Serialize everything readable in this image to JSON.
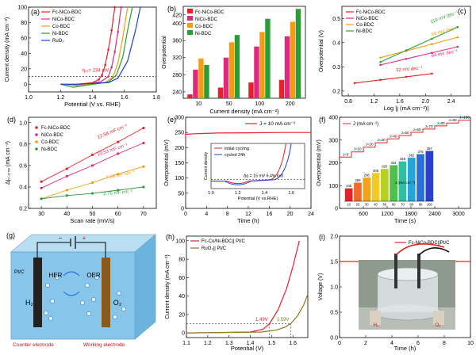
{
  "panels": {
    "a": {
      "label": "(a)",
      "xlabel": "Potential (V vs. RHE)",
      "ylabel": "Current density (mA cm⁻²)",
      "xticks": [
        "1.0",
        "1.2",
        "1.4",
        "1.6",
        "1.8"
      ],
      "yticks": [
        "0",
        "20",
        "40",
        "60",
        "80",
        "100"
      ],
      "annotation": "η₁₀= 234 mV",
      "legend": [
        "Fc-NiCo-BDC",
        "NiCo-BDC",
        "Co-BDC",
        "Ni-BDC",
        "RuO₂"
      ],
      "colors": [
        "#e8202a",
        "#e0287f",
        "#f39c12",
        "#2a9d35",
        "#1f3fd8"
      ]
    },
    "b": {
      "label": "(b)",
      "xlabel": "Current density (mA cm⁻²)",
      "ylabel": "Overpotential",
      "yticks": [
        "240",
        "280",
        "320",
        "360",
        "400",
        "420"
      ],
      "legend": [
        "Fc-NiCo-BDC",
        "NiCo-BDC",
        "Co-BDC",
        "Ni-BDC"
      ],
      "colors": [
        "#e8202a",
        "#e0287f",
        "#f39c12",
        "#2a9d35"
      ]
    },
    "c": {
      "label": "(c)",
      "xlabel": "Log |j (mA cm⁻²)|",
      "ylabel": "Overpotential (V)",
      "xticks": [
        "0.8",
        "1.2",
        "1.6",
        "2.0",
        "2.4"
      ],
      "yticks": [
        "0.2",
        "0.3",
        "0.4",
        "0.5"
      ],
      "legend": [
        "Fc-NiCo-BDC",
        "NiCo-BDC",
        "Co-BDC",
        "Ni-BDC"
      ],
      "tafel": [
        "119 mV dec⁻¹",
        "69 mV dec⁻¹",
        "64 mV dec⁻¹",
        "32 mV dec⁻¹"
      ],
      "colors": [
        "#e8202a",
        "#e0287f",
        "#f39c12",
        "#2a9d35"
      ]
    },
    "d": {
      "label": "(d)",
      "xlabel": "Scan rate (mV/s)",
      "ylabel": "Δj₀.₁₁₅ᵥ (mA cm⁻²)",
      "xticks": [
        "30",
        "40",
        "50",
        "60",
        "70"
      ],
      "yticks": [
        "0.2",
        "0.4",
        "0.6",
        "0.8",
        "1.0"
      ],
      "legend": [
        "Fc-NiCo-BDC",
        "NiCo-BDC",
        "Co-BDC",
        "Ni-BDC"
      ],
      "cdl": [
        "12.58 mF cm⁻²",
        "10.53 mF cm⁻²",
        "7.53 mF cm⁻²",
        "2.75 mF cm⁻²"
      ],
      "colors": [
        "#e8202a",
        "#e0287f",
        "#f39c12",
        "#2a9d35"
      ]
    },
    "e": {
      "label": "(e)",
      "xlabel": "Time (h)",
      "ylabel": "Overpotential (mV)",
      "xticks": [
        "0",
        "4",
        "8",
        "12",
        "16",
        "20",
        "24"
      ],
      "yticks": [
        "0",
        "50",
        "100",
        "150",
        "200",
        "250",
        "300"
      ],
      "legend": "J = 10 mA cm⁻²",
      "inset_legend": [
        "initial cycling",
        "cycled 24h"
      ],
      "inset_note": "Δη = 15 mV 6.4% lost",
      "inset_xlabel": "Potential (V vs.RHE)",
      "inset_ylabel": "Current density",
      "inset_xticks": [
        "1.0",
        "1.2",
        "1.4",
        "1.6"
      ]
    },
    "f": {
      "label": "(f)",
      "xlabel": "Time (s)",
      "ylabel": "Overpotential (mV)",
      "xticks": [
        "600",
        "1200",
        "1800",
        "2400",
        "3000"
      ],
      "yticks": [
        "0",
        "100",
        "200",
        "300",
        "400"
      ],
      "legend": "J (mA cm⁻²)",
      "steps": [
        "J=5",
        "J=10",
        "J=20",
        "J=30",
        "J=40",
        "J=50",
        "J=60",
        "J=70",
        "J=80",
        "J=90",
        "J=100"
      ],
      "bar_values": [
        "248",
        "269",
        "288",
        "305",
        "320",
        "334",
        "348",
        "362",
        "375",
        "387"
      ],
      "bar_labels": [
        "10",
        "20",
        "30",
        "40",
        "50",
        "60",
        "70",
        "80",
        "90",
        "100"
      ],
      "bar_xlabel": "J (mA cm⁻²)"
    },
    "g": {
      "label": "(g)",
      "pt": "Pt/C",
      "her": "HER",
      "oer": "OER",
      "h2": "H₂",
      "o2": "O₂",
      "counter": "Counter electrode",
      "working": "Working electrode",
      "minus": "−",
      "plus": "+"
    },
    "h": {
      "label": "(h)",
      "xlabel": "Potential (V)",
      "ylabel": "Current density (mA cm⁻²)",
      "xticks": [
        "1.1",
        "1.2",
        "1.3",
        "1.4",
        "1.5",
        "1.6"
      ],
      "yticks": [
        "0",
        "20",
        "40",
        "60",
        "80",
        "100"
      ],
      "legend": [
        "Fc-Co/Ni-BDC|| Pt/C",
        "RuO₂|| Pt/C"
      ],
      "v1": "1.49V",
      "v2": "1.59V"
    },
    "i": {
      "label": "(i)",
      "xlabel": "Time (h)",
      "ylabel": "Voltage (V)",
      "xticks": [
        "0",
        "2",
        "4",
        "6",
        "8",
        "10"
      ],
      "yticks": [
        "0.0",
        "0.5",
        "1.0",
        "1.5",
        "2.0"
      ],
      "legend": "Fc-NiCo-BDC||Pt/C",
      "h2": "H₂",
      "o2": "O₂"
    }
  },
  "chart_data": [
    {
      "type": "line",
      "panel": "a",
      "title": "",
      "xlabel": "Potential (V vs. RHE)",
      "ylabel": "Current density (mA cm-2)",
      "xlim": [
        1.0,
        1.8
      ],
      "ylim": [
        -10,
        100
      ],
      "series": [
        {
          "name": "Fc-NiCo-BDC",
          "x": [
            1.2,
            1.3,
            1.4,
            1.44,
            1.46,
            1.48,
            1.5,
            1.52,
            1.54
          ],
          "y": [
            0,
            0,
            2,
            6,
            12,
            25,
            45,
            70,
            100
          ]
        },
        {
          "name": "NiCo-BDC",
          "x": [
            1.2,
            1.3,
            1.45,
            1.5,
            1.52,
            1.54,
            1.56,
            1.58
          ],
          "y": [
            0,
            -1,
            3,
            10,
            22,
            42,
            68,
            100
          ]
        },
        {
          "name": "Co-BDC",
          "x": [
            1.2,
            1.3,
            1.48,
            1.53,
            1.56,
            1.59,
            1.62
          ],
          "y": [
            0,
            -2,
            2,
            10,
            28,
            60,
            100
          ]
        },
        {
          "name": "Ni-BDC",
          "x": [
            1.2,
            1.28,
            1.5,
            1.55,
            1.59,
            1.62,
            1.65
          ],
          "y": [
            0,
            -4,
            3,
            12,
            35,
            70,
            100
          ]
        },
        {
          "name": "RuO2",
          "x": [
            1.2,
            1.3,
            1.5,
            1.56,
            1.62,
            1.67,
            1.7
          ],
          "y": [
            0,
            0,
            2,
            8,
            30,
            70,
            100
          ]
        }
      ]
    },
    {
      "type": "bar",
      "panel": "b",
      "title": "",
      "xlabel": "Current density (mA cm-2)",
      "ylabel": "Overpotential",
      "ylim": [
        225,
        440
      ],
      "categories": [
        "10",
        "50",
        "100",
        "200"
      ],
      "series": [
        {
          "name": "Fc-NiCo-BDC",
          "values": [
            234,
            250,
            262,
            268
          ]
        },
        {
          "name": "NiCo-BDC",
          "values": [
            292,
            320,
            346,
            370
          ]
        },
        {
          "name": "Co-BDC",
          "values": [
            318,
            356,
            380,
            404
          ]
        },
        {
          "name": "Ni-BDC",
          "values": [
            303,
            373,
            411,
            434
          ]
        }
      ]
    },
    {
      "type": "line",
      "panel": "c",
      "title": "",
      "xlabel": "Log |j (mA cm-2)|",
      "ylabel": "Overpotential (V)",
      "xlim": [
        0.7,
        2.7
      ],
      "ylim": [
        0.18,
        0.55
      ],
      "series": [
        {
          "name": "Fc-NiCo-BDC",
          "x": [
            0.9,
            1.3,
            1.7,
            2.1
          ],
          "y": [
            0.233,
            0.246,
            0.259,
            0.272
          ]
        },
        {
          "name": "NiCo-BDC",
          "x": [
            1.3,
            1.7,
            2.1,
            2.5
          ],
          "y": [
            0.308,
            0.333,
            0.358,
            0.383
          ]
        },
        {
          "name": "Co-BDC",
          "x": [
            1.3,
            1.7,
            2.1,
            2.5
          ],
          "y": [
            0.338,
            0.366,
            0.394,
            0.422
          ]
        },
        {
          "name": "Ni-BDC",
          "x": [
            1.3,
            1.7,
            2.1,
            2.5
          ],
          "y": [
            0.32,
            0.368,
            0.416,
            0.464
          ]
        }
      ]
    },
    {
      "type": "scatter",
      "panel": "d",
      "title": "",
      "xlabel": "Scan rate (mV/s)",
      "ylabel": "delta j (mA cm-2)",
      "xlim": [
        25,
        75
      ],
      "ylim": [
        0.2,
        1.05
      ],
      "x": [
        30,
        40,
        50,
        60,
        70
      ],
      "series": [
        {
          "name": "Fc-NiCo-BDC",
          "values": [
            0.45,
            0.57,
            0.7,
            0.82,
            0.95
          ]
        },
        {
          "name": "NiCo-BDC",
          "values": [
            0.39,
            0.5,
            0.6,
            0.71,
            0.81
          ]
        },
        {
          "name": "Co-BDC",
          "values": [
            0.29,
            0.37,
            0.44,
            0.52,
            0.59
          ]
        },
        {
          "name": "Ni-BDC",
          "values": [
            0.29,
            0.32,
            0.34,
            0.37,
            0.4
          ]
        }
      ]
    },
    {
      "type": "line",
      "panel": "e",
      "title": "",
      "xlabel": "Time (h)",
      "ylabel": "Overpotential (mV)",
      "xlim": [
        0,
        24
      ],
      "ylim": [
        0,
        300
      ],
      "series": [
        {
          "name": "J = 10 mA cm-2",
          "x": [
            0,
            2,
            6,
            12,
            18,
            24
          ],
          "y": [
            244,
            246,
            248,
            249,
            250,
            250
          ]
        }
      ]
    },
    {
      "type": "bar",
      "panel": "f",
      "title": "",
      "xlabel": "J (mA cm-2)",
      "ylabel": "Overpotential (mV)",
      "categories": [
        "10",
        "20",
        "30",
        "40",
        "50",
        "60",
        "70",
        "80",
        "90",
        "100"
      ],
      "values": [
        248,
        269,
        288,
        305,
        320,
        334,
        348,
        362,
        375,
        387
      ],
      "ylim": [
        0,
        400
      ]
    },
    {
      "type": "line",
      "panel": "h",
      "title": "",
      "xlabel": "Potential (V)",
      "ylabel": "Current density (mA cm-2)",
      "xlim": [
        1.1,
        1.67
      ],
      "ylim": [
        -5,
        105
      ],
      "series": [
        {
          "name": "Fc-Co/Ni-BDC|| Pt/C",
          "x": [
            1.1,
            1.4,
            1.46,
            1.49,
            1.53,
            1.57,
            1.6,
            1.63
          ],
          "y": [
            0,
            1,
            4,
            10,
            25,
            48,
            72,
            100
          ]
        },
        {
          "name": "RuO2|| Pt/C",
          "x": [
            1.1,
            1.45,
            1.52,
            1.56,
            1.59,
            1.62,
            1.65,
            1.67
          ],
          "y": [
            0,
            1,
            3,
            6,
            10,
            18,
            30,
            42
          ]
        }
      ]
    },
    {
      "type": "line",
      "panel": "i",
      "title": "",
      "xlabel": "Time (h)",
      "ylabel": "Voltage (V)",
      "xlim": [
        0,
        10
      ],
      "ylim": [
        0,
        2.0
      ],
      "series": [
        {
          "name": "Fc-NiCo-BDC||Pt/C",
          "x": [
            0,
            10
          ],
          "y": [
            1.5,
            1.5
          ]
        }
      ]
    }
  ]
}
